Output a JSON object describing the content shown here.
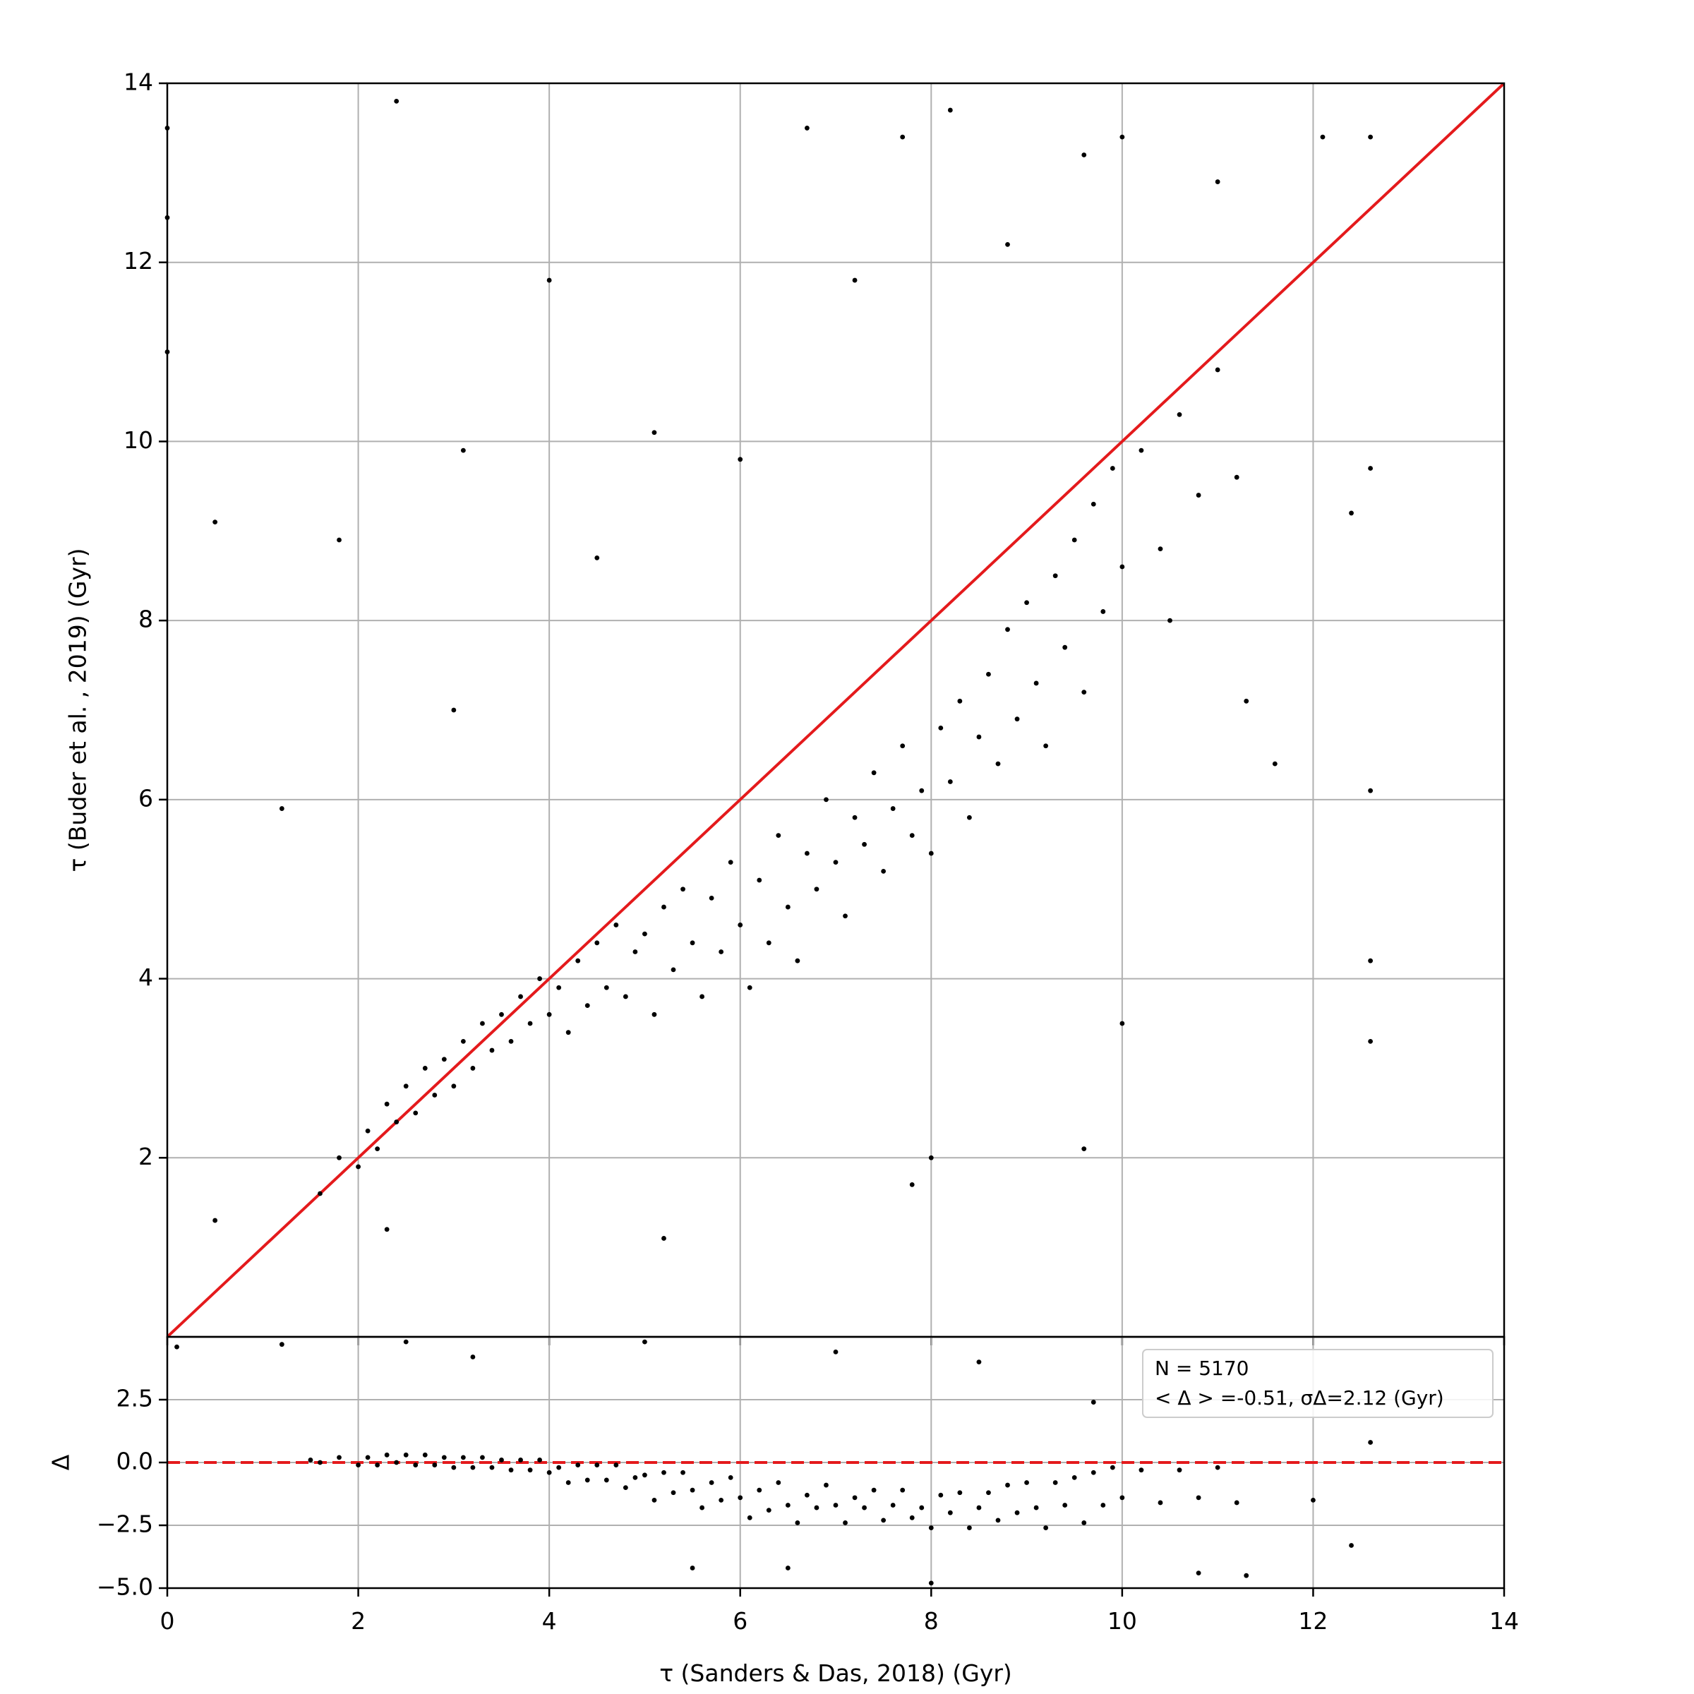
{
  "chart_data": [
    {
      "type": "scatter",
      "ylabel": "τ (Buder et al. , 2019) (Gyr)",
      "color": "#000000",
      "x": [
        1.6,
        1.8,
        2.0,
        2.1,
        2.2,
        2.3,
        2.4,
        2.5,
        2.6,
        2.7,
        2.8,
        2.9,
        3.0,
        3.1,
        3.2,
        3.3,
        3.4,
        3.5,
        3.6,
        3.7,
        3.8,
        3.9,
        4.0,
        4.1,
        4.2,
        4.3,
        4.4,
        4.5,
        4.6,
        4.7,
        4.8,
        4.9,
        5.0,
        5.1,
        5.2,
        5.3,
        5.4,
        5.5,
        5.6,
        5.7,
        5.8,
        5.9,
        6.0,
        6.1,
        6.2,
        6.3,
        6.4,
        6.5,
        6.6,
        6.7,
        6.8,
        6.9,
        7.0,
        7.1,
        7.2,
        7.3,
        7.4,
        7.5,
        7.6,
        7.7,
        7.8,
        7.9,
        8.0,
        8.1,
        8.2,
        8.3,
        8.4,
        8.5,
        8.6,
        8.7,
        8.8,
        8.9,
        9.0,
        9.1,
        9.2,
        9.3,
        9.4,
        9.5,
        9.6,
        9.7,
        9.8,
        9.9,
        10.0,
        10.2,
        10.4,
        10.6,
        10.8,
        11.0,
        11.2,
        0.0,
        0.0,
        0.0,
        0.5,
        1.2,
        1.8,
        2.4,
        3.1,
        4.0,
        5.1,
        5.2,
        6.7,
        7.7,
        8.2,
        9.6,
        10.0,
        11.0,
        12.1,
        12.6,
        12.6,
        12.6,
        12.6,
        12.6,
        12.4,
        11.6,
        9.6,
        7.8,
        8.0,
        10.0,
        2.3,
        0.5,
        3.0,
        4.5,
        6.0,
        7.2,
        8.8,
        10.5,
        11.3
      ],
      "values": [
        1.6,
        2.0,
        1.9,
        2.3,
        2.1,
        2.6,
        2.4,
        2.8,
        2.5,
        3.0,
        2.7,
        3.1,
        2.8,
        3.3,
        3.0,
        3.5,
        3.2,
        3.6,
        3.3,
        3.8,
        3.5,
        4.0,
        3.6,
        3.9,
        3.4,
        4.2,
        3.7,
        4.4,
        3.9,
        4.6,
        3.8,
        4.3,
        4.5,
        3.6,
        4.8,
        4.1,
        5.0,
        4.4,
        3.8,
        4.9,
        4.3,
        5.3,
        4.6,
        3.9,
        5.1,
        4.4,
        5.6,
        4.8,
        4.2,
        5.4,
        5.0,
        6.0,
        5.3,
        4.7,
        5.8,
        5.5,
        6.3,
        5.2,
        5.9,
        6.6,
        5.6,
        6.1,
        5.4,
        6.8,
        6.2,
        7.1,
        5.8,
        6.7,
        7.4,
        6.4,
        7.9,
        6.9,
        8.2,
        7.3,
        6.6,
        8.5,
        7.7,
        8.9,
        7.2,
        9.3,
        8.1,
        9.7,
        8.6,
        9.9,
        8.8,
        10.3,
        9.4,
        10.8,
        9.6,
        12.5,
        11.0,
        13.5,
        9.1,
        5.9,
        8.9,
        13.8,
        9.9,
        11.8,
        10.1,
        1.1,
        13.5,
        13.4,
        13.7,
        13.2,
        13.4,
        12.9,
        13.4,
        13.4,
        9.7,
        6.1,
        4.2,
        3.3,
        9.2,
        6.4,
        2.1,
        1.7,
        2.0,
        3.5,
        1.2,
        1.3,
        7.0,
        8.7,
        9.8,
        11.8,
        12.2,
        8.0,
        7.1
      ],
      "line": {
        "x": [
          0,
          14
        ],
        "y": [
          0,
          14
        ],
        "color": "#e41a1c"
      },
      "xlim": [
        0,
        14
      ],
      "ylim": [
        0,
        14
      ],
      "xticks": [
        0,
        2,
        4,
        6,
        8,
        10,
        12,
        14
      ],
      "yticks": [
        2,
        4,
        6,
        8,
        10,
        12,
        14
      ],
      "grid": true
    },
    {
      "type": "scatter",
      "xlabel": "τ (Sanders & Das,  2018) (Gyr)",
      "ylabel": "Δ",
      "color": "#000000",
      "x": [
        1.6,
        1.8,
        2.0,
        2.1,
        2.2,
        2.3,
        2.4,
        2.5,
        2.6,
        2.7,
        2.8,
        2.9,
        3.0,
        3.1,
        3.2,
        3.3,
        3.4,
        3.5,
        3.6,
        3.7,
        3.8,
        3.9,
        4.0,
        4.1,
        4.2,
        4.3,
        4.4,
        4.5,
        4.6,
        4.7,
        4.8,
        4.9,
        5.0,
        5.1,
        5.2,
        5.3,
        5.4,
        5.5,
        5.6,
        5.7,
        5.8,
        5.9,
        6.0,
        6.1,
        6.2,
        6.3,
        6.4,
        6.5,
        6.6,
        6.7,
        6.8,
        6.9,
        7.0,
        7.1,
        7.2,
        7.3,
        7.4,
        7.5,
        7.6,
        7.7,
        7.8,
        7.9,
        8.0,
        8.1,
        8.2,
        8.3,
        8.4,
        8.5,
        8.6,
        8.7,
        8.8,
        8.9,
        9.0,
        9.1,
        9.2,
        9.3,
        9.4,
        9.5,
        9.6,
        9.7,
        9.8,
        9.9,
        10.0,
        10.2,
        10.4,
        10.6,
        10.8,
        11.0,
        11.2,
        0.1,
        1.2,
        2.5,
        3.2,
        5.0,
        7.0,
        8.5,
        9.7,
        12.6,
        12.4,
        11.3,
        10.8,
        6.5,
        5.5,
        8.0,
        12.0,
        1.5
      ],
      "values": [
        0.0,
        0.2,
        -0.1,
        0.2,
        -0.1,
        0.3,
        0.0,
        0.3,
        -0.1,
        0.3,
        -0.1,
        0.2,
        -0.2,
        0.2,
        -0.2,
        0.2,
        -0.2,
        0.1,
        -0.3,
        0.1,
        -0.3,
        0.1,
        -0.4,
        -0.2,
        -0.8,
        -0.1,
        -0.7,
        -0.1,
        -0.7,
        -0.1,
        -1.0,
        -0.6,
        -0.5,
        -1.5,
        -0.4,
        -1.2,
        -0.4,
        -1.1,
        -1.8,
        -0.8,
        -1.5,
        -0.6,
        -1.4,
        -2.2,
        -1.1,
        -1.9,
        -0.8,
        -1.7,
        -2.4,
        -1.3,
        -1.8,
        -0.9,
        -1.7,
        -2.4,
        -1.4,
        -1.8,
        -1.1,
        -2.3,
        -1.7,
        -1.1,
        -2.2,
        -1.8,
        -2.6,
        -1.3,
        -2.0,
        -1.2,
        -2.6,
        -1.8,
        -1.2,
        -2.3,
        -0.9,
        -2.0,
        -0.8,
        -1.8,
        -2.6,
        -0.8,
        -1.7,
        -0.6,
        -2.4,
        -0.4,
        -1.7,
        -0.2,
        -1.4,
        -0.3,
        -1.6,
        -0.3,
        -1.4,
        -0.2,
        -1.6,
        4.6,
        4.7,
        4.8,
        4.2,
        4.8,
        4.4,
        4.0,
        2.4,
        0.8,
        -3.3,
        -4.5,
        -4.4,
        -4.2,
        -4.2,
        -4.8,
        -1.5,
        0.1
      ],
      "line": {
        "x": [
          0,
          14
        ],
        "y": [
          0,
          0
        ],
        "color": "#e41a1c",
        "dashed": true
      },
      "annotation": [
        "N = 5170",
        "< Δ > =-0.51, σΔ=2.12 (Gyr)"
      ],
      "xlim": [
        0,
        14
      ],
      "ylim": [
        -5,
        5
      ],
      "xticks": [
        0,
        2,
        4,
        6,
        8,
        10,
        12,
        14
      ],
      "yticks": [
        {
          "value": -5,
          "label": "−5.0"
        },
        {
          "value": -2.5,
          "label": "−2.5"
        },
        {
          "value": 0,
          "label": "0.0"
        },
        {
          "value": 2.5,
          "label": "2.5"
        }
      ],
      "grid": true
    }
  ]
}
